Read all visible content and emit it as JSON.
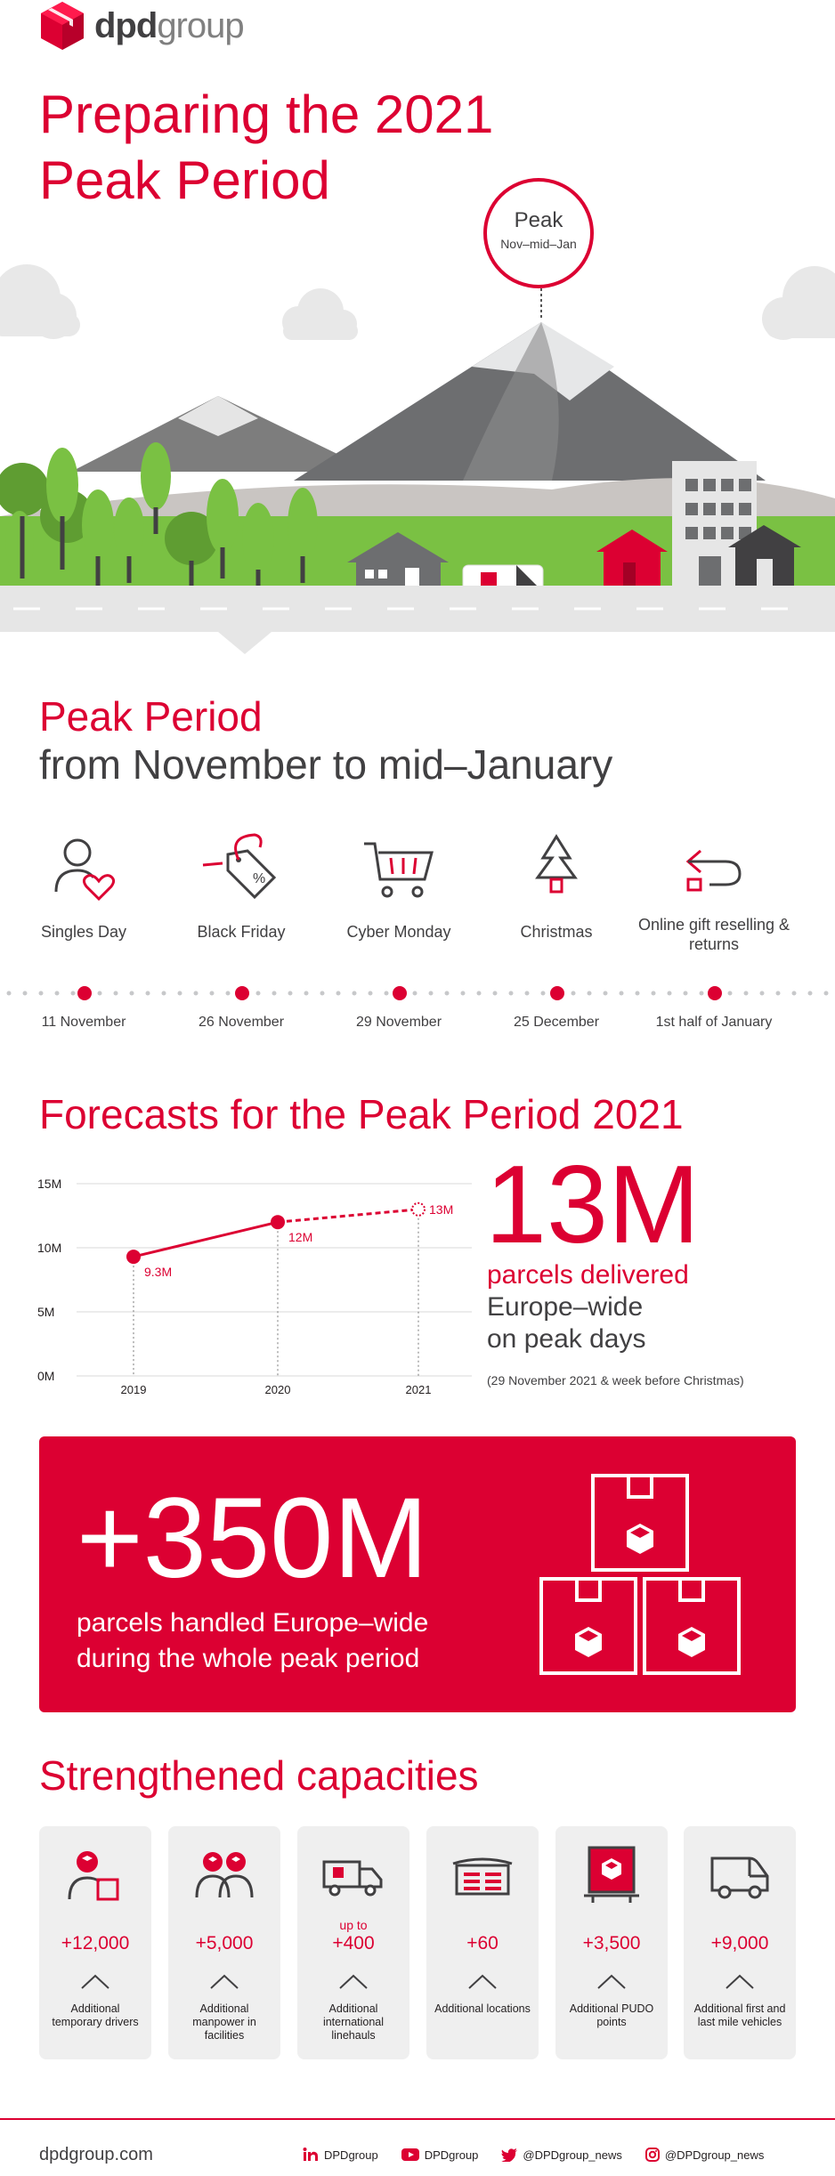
{
  "brand": {
    "bold": "dpd",
    "light": "group"
  },
  "hero": {
    "title_line1": "Preparing the 2021",
    "title_line2": "Peak Period",
    "peak_label": "Peak",
    "peak_range": "Nov–mid–Jan"
  },
  "peak_section": {
    "title_red": "Peak Period",
    "title_gray": "from November to mid–January",
    "events": [
      {
        "name": "Singles Day",
        "date": "11 November",
        "icon": "person-heart-icon"
      },
      {
        "name": "Black Friday",
        "date": "26 November",
        "icon": "price-tag-icon"
      },
      {
        "name": "Cyber Monday",
        "date": "29 November",
        "icon": "shopping-cart-icon"
      },
      {
        "name": "Christmas",
        "date": "25 December",
        "icon": "christmas-tree-icon"
      },
      {
        "name": "Online gift reselling & returns",
        "date": "1st half of January",
        "icon": "return-arrow-icon"
      }
    ]
  },
  "forecast": {
    "title": "Forecasts for the Peak Period 2021",
    "big_value": "13M",
    "sub_red": "parcels delivered",
    "sub_gray1": "Europe–wide",
    "sub_gray2": "on peak days",
    "note": "(29 November 2021 & week before Christmas)"
  },
  "chart_data": {
    "type": "line",
    "x": [
      "2019",
      "2020",
      "2021"
    ],
    "values": [
      9.3,
      12,
      13
    ],
    "data_labels": [
      "9.3M",
      "12M",
      "13M"
    ],
    "y_ticks": [
      "0M",
      "5M",
      "10M",
      "15M"
    ],
    "ylim": [
      0,
      15
    ],
    "grid": true,
    "forecast_last_point": true,
    "colors": {
      "line": "#dc0032",
      "grid": "#d9d9d9"
    }
  },
  "banner": {
    "value": "+350M",
    "text_line1": "parcels handled Europe–wide",
    "text_line2": "during the whole peak period"
  },
  "capacities": {
    "title": "Strengthened capacities",
    "cards": [
      {
        "upto": "",
        "value": "+12,000",
        "desc": "Additional temporary drivers",
        "icon": "driver-icon"
      },
      {
        "upto": "",
        "value": "+5,000",
        "desc": "Additional manpower in facilities",
        "icon": "workers-icon"
      },
      {
        "upto": "up to",
        "value": "+400",
        "desc": "Additional international linehauls",
        "icon": "truck-icon"
      },
      {
        "upto": "",
        "value": "+60",
        "desc": "Additional locations",
        "icon": "warehouse-icon"
      },
      {
        "upto": "",
        "value": "+3,500",
        "desc": "Additional PUDO points",
        "icon": "pudo-locker-icon"
      },
      {
        "upto": "",
        "value": "+9,000",
        "desc": "Additional first and last mile vehicles",
        "icon": "van-icon"
      }
    ]
  },
  "footer": {
    "site": "dpdgroup.com",
    "linkedin": "DPDgroup",
    "youtube": "DPDgroup",
    "twitter": "@DPDgroup_news",
    "instagram": "@DPDgroup_news"
  },
  "colors": {
    "accent": "#dc0032",
    "text": "#414042",
    "card_bg": "#efefef",
    "grass": "#7ac143",
    "road": "#e6e6e6"
  }
}
